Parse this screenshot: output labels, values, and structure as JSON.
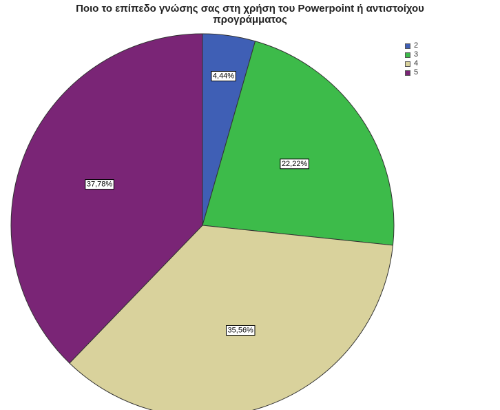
{
  "chart_data": {
    "type": "pie",
    "title": "Ποιο το επίπεδο γνώσης σας στη χρήση του Powerpoint ή αντιστοίχου προγράμματος",
    "title_lines": [
      "Ποιο το επίπεδο γνώσης σας στη χρήση του Powerpoint ή αντιστοίχου",
      "προγράμματος"
    ],
    "legend_position": "top-right",
    "slices": [
      {
        "category": "2",
        "value": 4.44,
        "label": "4,44%",
        "color": "#3f5fb5"
      },
      {
        "category": "3",
        "value": 22.22,
        "label": "22,22%",
        "color": "#3dbb4a"
      },
      {
        "category": "4",
        "value": 35.56,
        "label": "35,56%",
        "color": "#d9d29c"
      },
      {
        "category": "5",
        "value": 37.78,
        "label": "37,78%",
        "color": "#7a2576"
      }
    ]
  }
}
